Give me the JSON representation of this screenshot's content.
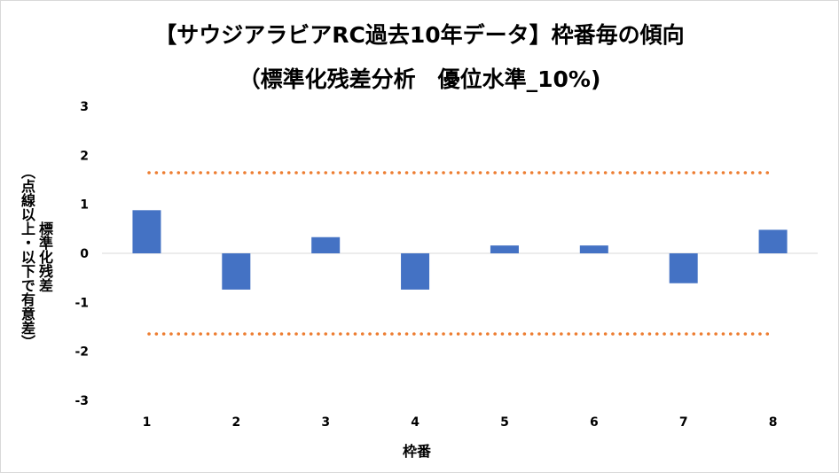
{
  "chart_data": {
    "type": "bar",
    "title": "【サウジアラビアRC過去10年データ】枠番毎の傾向",
    "subtitle": "（標準化残差分析　優位水準_10%)",
    "xlabel": "枠番",
    "ylabel_line1": "標準化残差",
    "ylabel_line2": "（点線以上・以下で有意差）",
    "categories": [
      "1",
      "2",
      "3",
      "4",
      "5",
      "6",
      "7",
      "8"
    ],
    "values": [
      0.88,
      -0.74,
      0.33,
      -0.74,
      0.16,
      0.16,
      -0.61,
      0.48
    ],
    "ylim": [
      -3,
      3
    ],
    "yticks": [
      "3",
      "2",
      "1",
      "0",
      "-1",
      "-2",
      "-3"
    ],
    "threshold": 1.645,
    "bar_color": "#4472c4",
    "threshold_color": "#ed7d31",
    "grid": false,
    "legend": "none"
  }
}
